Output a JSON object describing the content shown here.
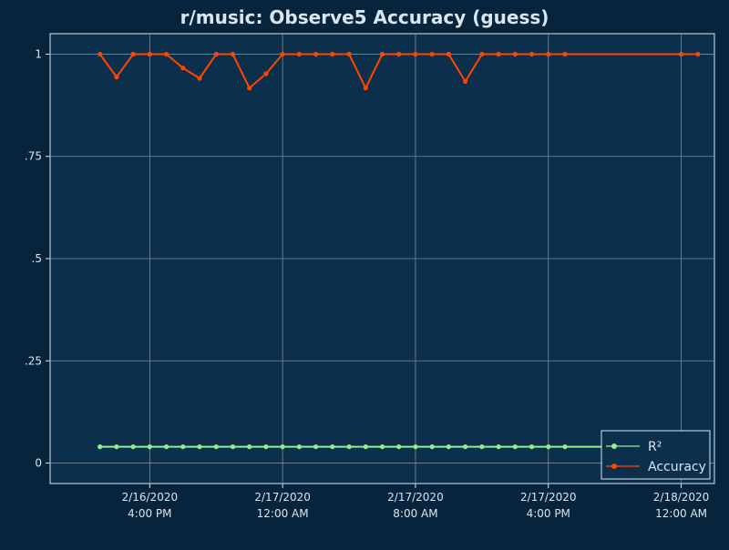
{
  "colors": {
    "page_bg": "#06243b",
    "plot_bg": "#0c304b",
    "grid": "#7d8c99",
    "axis": "#d9e6f0",
    "text": "#d9e6f0",
    "r2": "#90ee90",
    "accuracy": "#ff4500"
  },
  "chart_data": {
    "type": "line",
    "title": "r/music: Observe5 Accuracy (guess)",
    "xlabel": "",
    "ylabel": "",
    "ylim": [
      -0.05,
      1.05
    ],
    "y_ticks": [
      {
        "value": 0,
        "label": "0"
      },
      {
        "value": 0.25,
        "label": ".25"
      },
      {
        "value": 0.5,
        "label": ".5"
      },
      {
        "value": 0.75,
        "label": ".75"
      },
      {
        "value": 1,
        "label": "1"
      }
    ],
    "x_range": [
      "2020-02-16T10:00",
      "2020-02-18T02:00"
    ],
    "x_ticks": [
      {
        "value": "2020-02-16T16:00",
        "label_date": "2/16/2020",
        "label_time": "4:00 PM"
      },
      {
        "value": "2020-02-17T00:00",
        "label_date": "2/17/2020",
        "label_time": "12:00 AM"
      },
      {
        "value": "2020-02-17T08:00",
        "label_date": "2/17/2020",
        "label_time": "8:00 AM"
      },
      {
        "value": "2020-02-17T16:00",
        "label_date": "2/17/2020",
        "label_time": "4:00 PM"
      },
      {
        "value": "2020-02-18T00:00",
        "label_date": "2/18/2020",
        "label_time": "12:00 AM"
      }
    ],
    "grid": true,
    "legend_position": "bottom-right",
    "series": [
      {
        "name": "R²",
        "color": "#90ee90",
        "x": [
          "2020-02-16T13:00",
          "2020-02-16T14:00",
          "2020-02-16T15:00",
          "2020-02-16T16:00",
          "2020-02-16T17:00",
          "2020-02-16T18:00",
          "2020-02-16T19:00",
          "2020-02-16T20:00",
          "2020-02-16T21:00",
          "2020-02-16T22:00",
          "2020-02-16T23:00",
          "2020-02-17T00:00",
          "2020-02-17T01:00",
          "2020-02-17T02:00",
          "2020-02-17T03:00",
          "2020-02-17T04:00",
          "2020-02-17T05:00",
          "2020-02-17T06:00",
          "2020-02-17T07:00",
          "2020-02-17T08:00",
          "2020-02-17T09:00",
          "2020-02-17T10:00",
          "2020-02-17T11:00",
          "2020-02-17T12:00",
          "2020-02-17T13:00",
          "2020-02-17T14:00",
          "2020-02-17T15:00",
          "2020-02-17T16:00",
          "2020-02-17T17:00",
          "2020-02-18T00:00",
          "2020-02-18T01:00"
        ],
        "y": [
          0.04,
          0.04,
          0.04,
          0.04,
          0.04,
          0.04,
          0.04,
          0.04,
          0.04,
          0.04,
          0.04,
          0.04,
          0.04,
          0.04,
          0.04,
          0.04,
          0.04,
          0.04,
          0.04,
          0.04,
          0.04,
          0.04,
          0.04,
          0.04,
          0.04,
          0.04,
          0.04,
          0.04,
          0.04,
          0.04,
          0.04
        ]
      },
      {
        "name": "Accuracy",
        "color": "#ff4500",
        "x": [
          "2020-02-16T13:00",
          "2020-02-16T14:00",
          "2020-02-16T15:00",
          "2020-02-16T16:00",
          "2020-02-16T17:00",
          "2020-02-16T18:00",
          "2020-02-16T19:00",
          "2020-02-16T20:00",
          "2020-02-16T21:00",
          "2020-02-16T22:00",
          "2020-02-16T23:00",
          "2020-02-17T00:00",
          "2020-02-17T01:00",
          "2020-02-17T02:00",
          "2020-02-17T03:00",
          "2020-02-17T04:00",
          "2020-02-17T05:00",
          "2020-02-17T06:00",
          "2020-02-17T07:00",
          "2020-02-17T08:00",
          "2020-02-17T09:00",
          "2020-02-17T10:00",
          "2020-02-17T11:00",
          "2020-02-17T12:00",
          "2020-02-17T13:00",
          "2020-02-17T14:00",
          "2020-02-17T15:00",
          "2020-02-17T16:00",
          "2020-02-17T17:00",
          "2020-02-18T00:00",
          "2020-02-18T01:00"
        ],
        "y": [
          1,
          0.944,
          1,
          1,
          1,
          0.966,
          0.941,
          1,
          1,
          0.917,
          0.952,
          1,
          1,
          1,
          1,
          1,
          0.917,
          1,
          1,
          1,
          1,
          1,
          0.933,
          1,
          1,
          1,
          1,
          1,
          1,
          1,
          1
        ]
      }
    ]
  }
}
